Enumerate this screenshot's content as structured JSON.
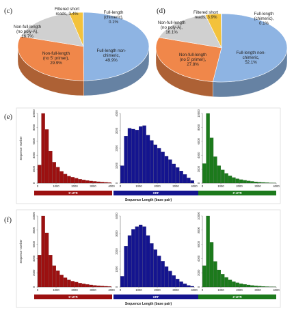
{
  "panels": {
    "c": "(c)",
    "d": "(d)",
    "e": "(e)",
    "f": "(f)"
  },
  "colors": {
    "full_length_non_chimeric": "#8eb4e3",
    "non_full_length_no5": "#f0874a",
    "non_full_length_polyA": "#d0d0d0",
    "filtered_short": "#f3c23c",
    "full_length_chimeric": "#9fc765",
    "utr5": "#9c1010",
    "orf": "#14148f",
    "utr3": "#1c7a1c"
  },
  "chart_data": [
    {
      "panel": "c",
      "type": "pie",
      "labels": [
        {
          "line1": "Full-length non-",
          "line2": "chimeric,",
          "line3": "49.9%"
        },
        {
          "line1": "Non-full-length",
          "line2": "(no 5' primer),",
          "line3": "29.9%"
        },
        {
          "line1": "Non-full-length",
          "line2": "(no poly-A),",
          "line3": "16.7%"
        },
        {
          "line1": "Filtered short",
          "line2": "reads, 3.4%",
          "line3": ""
        },
        {
          "line1": "Full-length",
          "line2": "(chimeric),",
          "line3": "0.1%"
        }
      ],
      "values": [
        49.9,
        29.9,
        16.7,
        3.4,
        0.1
      ]
    },
    {
      "panel": "d",
      "type": "pie",
      "labels": [
        {
          "line1": "Full-length non-",
          "line2": "chimeric,",
          "line3": "52.1%"
        },
        {
          "line1": "Non-full-length",
          "line2": "(no 5' primer),",
          "line3": "27.8%"
        },
        {
          "line1": "Non-full-length",
          "line2": "(no poly-A),",
          "line3": "16.1%"
        },
        {
          "line1": "Filtered short",
          "line2": "reads, 3.9%",
          "line3": ""
        },
        {
          "line1": "Full-length",
          "line2": "(chimeric),",
          "line3": "0.1%"
        }
      ],
      "values": [
        52.1,
        27.8,
        16.1,
        3.9,
        0.1
      ]
    },
    {
      "panel": "e",
      "type": "bar",
      "ylabel": "Sequence Number",
      "xlabel": "Sequence Length (base pair)",
      "series": [
        {
          "name": "5'-UTR",
          "xlim": [
            0,
            4000
          ],
          "xticks": [
            "0",
            "1000",
            "2000",
            "3000",
            "4000"
          ],
          "ylim": [
            0,
            10000
          ],
          "yticks": [
            "0",
            "2000",
            "4000",
            "6000",
            "8000",
            "10000"
          ],
          "bin_width": 200,
          "values": [
            2600,
            10000,
            7700,
            4600,
            3000,
            2300,
            1700,
            1300,
            1000,
            850,
            700,
            560,
            460,
            380,
            300,
            250,
            200,
            150,
            110,
            80
          ]
        },
        {
          "name": "ORF",
          "xlim": [
            0,
            4000
          ],
          "xticks": [
            "0",
            "1000",
            "2000",
            "3000",
            "4000"
          ],
          "ylim": [
            0,
            4000
          ],
          "yticks": [
            "0",
            "1000",
            "2000",
            "3000",
            "4000"
          ],
          "bin_width": 200,
          "values": [
            1000,
            2700,
            3150,
            3100,
            3050,
            3250,
            3300,
            2750,
            2450,
            2200,
            2000,
            1800,
            1550,
            1350,
            1100,
            900,
            700,
            500,
            300,
            150
          ]
        },
        {
          "name": "3'-UTR",
          "xlim": [
            0,
            4000
          ],
          "xticks": [
            "0",
            "1000",
            "2000",
            "3000",
            "4000"
          ],
          "ylim": [
            0,
            10000
          ],
          "yticks": [
            "0",
            "2000",
            "4000",
            "6000",
            "8000",
            "10000"
          ],
          "bin_width": 200,
          "values": [
            2800,
            10000,
            6500,
            3800,
            2500,
            1900,
            1400,
            1050,
            800,
            630,
            500,
            400,
            320,
            250,
            190,
            140,
            100,
            70,
            40,
            20
          ]
        }
      ]
    },
    {
      "panel": "f",
      "type": "bar",
      "ylabel": "Sequence Number",
      "xlabel": "Sequence Length (base pair)",
      "series": [
        {
          "name": "5'-UTR",
          "xlim": [
            0,
            4000
          ],
          "xticks": [
            "0",
            "1000",
            "2000",
            "3000",
            "4000"
          ],
          "ylim": [
            0,
            10000
          ],
          "yticks": [
            "0",
            "2000",
            "4000",
            "6000",
            "8000",
            "10000"
          ],
          "bin_width": 200,
          "values": [
            4500,
            10000,
            7600,
            4500,
            3000,
            2300,
            1700,
            1300,
            1000,
            820,
            680,
            540,
            440,
            360,
            290,
            230,
            180,
            140,
            100,
            70
          ]
        },
        {
          "name": "ORF",
          "xlim": [
            0,
            4000
          ],
          "xticks": [
            "0",
            "1000",
            "2000",
            "3000",
            "4000"
          ],
          "ylim": [
            0,
            4000
          ],
          "yticks": [
            "0",
            "1000",
            "2000",
            "3000",
            "4000"
          ],
          "bin_width": 200,
          "values": [
            600,
            2300,
            2900,
            3250,
            3400,
            3500,
            3400,
            2900,
            2450,
            2100,
            1750,
            1450,
            1150,
            900,
            650,
            450,
            300,
            180,
            90,
            40
          ]
        },
        {
          "name": "3'-UTR",
          "xlim": [
            0,
            4000
          ],
          "xticks": [
            "0",
            "1000",
            "2000",
            "3000",
            "4000"
          ],
          "ylim": [
            0,
            10000
          ],
          "yticks": [
            "0",
            "2000",
            "4000",
            "6000",
            "8000",
            "10000"
          ],
          "bin_width": 200,
          "values": [
            3000,
            10000,
            6300,
            3600,
            2400,
            1800,
            1350,
            1000,
            760,
            600,
            470,
            370,
            290,
            220,
            160,
            120,
            80,
            50,
            30,
            15
          ]
        }
      ]
    }
  ]
}
